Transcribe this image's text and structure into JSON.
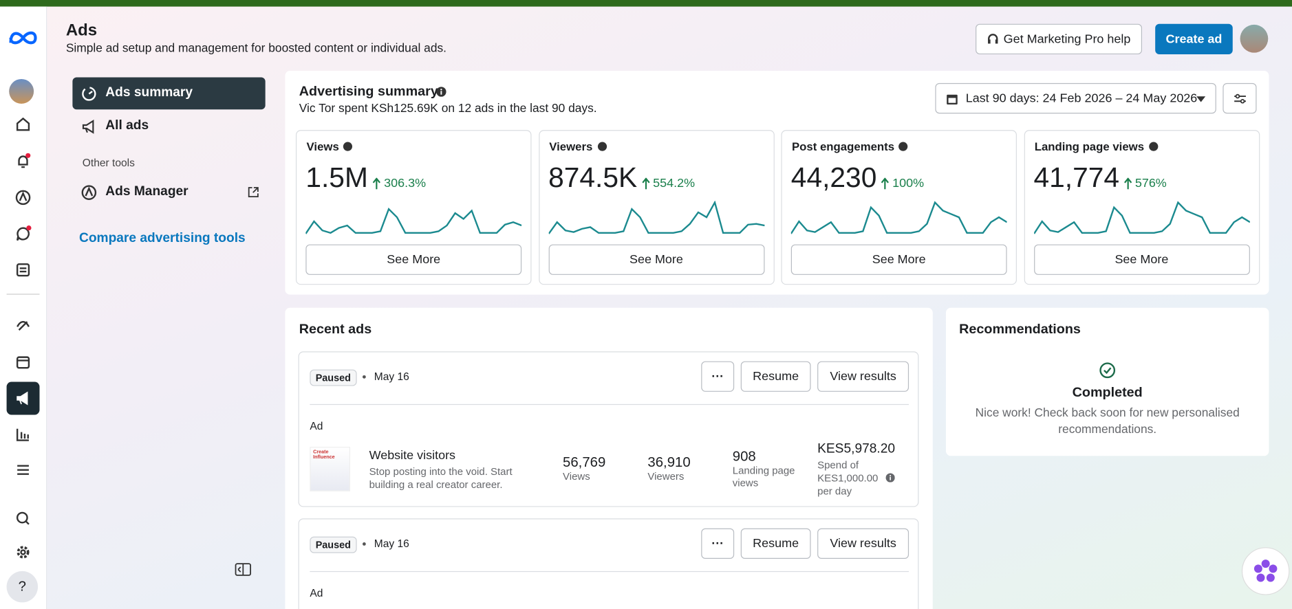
{
  "header": {
    "title": "Ads",
    "subtitle": "Simple ad setup and management for boosted content or individual ads.",
    "help_button": "Get Marketing Pro help",
    "create_button": "Create ad"
  },
  "nav": {
    "summary": "Ads summary",
    "all_ads": "All ads",
    "section": "Other tools",
    "ads_manager": "Ads Manager",
    "compare": "Compare advertising tools"
  },
  "summary": {
    "title": "Advertising summary",
    "text": "Vic Tor spent KSh125.69K on 12 ads in the last 90 days.",
    "date_range": "Last 90 days: 24 Feb 2026 – 24 May 2026",
    "metrics": [
      {
        "label": "Views",
        "value": "1.5M",
        "change": "306.3%",
        "button": "See More",
        "spark": [
          0,
          15,
          4,
          1,
          7,
          10,
          1,
          1,
          1,
          3,
          30,
          20,
          1,
          1,
          1,
          1,
          3,
          10,
          25,
          18,
          28,
          1,
          1,
          1,
          11,
          14,
          10
        ]
      },
      {
        "label": "Viewers",
        "value": "874.5K",
        "change": "554.2%",
        "button": "See More",
        "spark": [
          0,
          14,
          4,
          2,
          6,
          8,
          1,
          1,
          1,
          3,
          30,
          20,
          1,
          1,
          1,
          1,
          3,
          12,
          26,
          20,
          38,
          1,
          1,
          1,
          11,
          12,
          10
        ]
      },
      {
        "label": "Post engagements",
        "value": "44,230",
        "change": "100%",
        "button": "See More",
        "spark": [
          0,
          15,
          4,
          2,
          8,
          14,
          1,
          1,
          1,
          3,
          32,
          22,
          1,
          1,
          1,
          1,
          3,
          12,
          38,
          28,
          24,
          20,
          1,
          1,
          1,
          14,
          20,
          14
        ]
      },
      {
        "label": "Landing page views",
        "value": "41,774",
        "change": "576%",
        "button": "See More",
        "spark": [
          0,
          15,
          4,
          2,
          8,
          14,
          1,
          1,
          1,
          3,
          32,
          22,
          1,
          1,
          1,
          1,
          3,
          12,
          38,
          28,
          24,
          20,
          1,
          1,
          1,
          14,
          20,
          14
        ]
      }
    ]
  },
  "recent_ads": {
    "title": "Recent ads",
    "ads": [
      {
        "status": "Paused",
        "date": "May 16",
        "resume": "Resume",
        "view": "View results",
        "type": "Ad",
        "name": "Website visitors",
        "description": "Stop posting into the void. Start building a real creator career.",
        "stats": [
          {
            "value": "56,769",
            "label": "Views"
          },
          {
            "value": "36,910",
            "label": "Viewers"
          },
          {
            "value": "908",
            "label": "Landing page views"
          }
        ],
        "spend": "KES5,978.20",
        "spend_note": "Spend of KES1,000.00 per day"
      },
      {
        "status": "Paused",
        "date": "May 16",
        "resume": "Resume",
        "view": "View results",
        "type": "Ad"
      }
    ]
  },
  "recommendations": {
    "title": "Recommendations",
    "status": "Completed",
    "message": "Nice work! Check back soon for new personalised recommendations."
  }
}
